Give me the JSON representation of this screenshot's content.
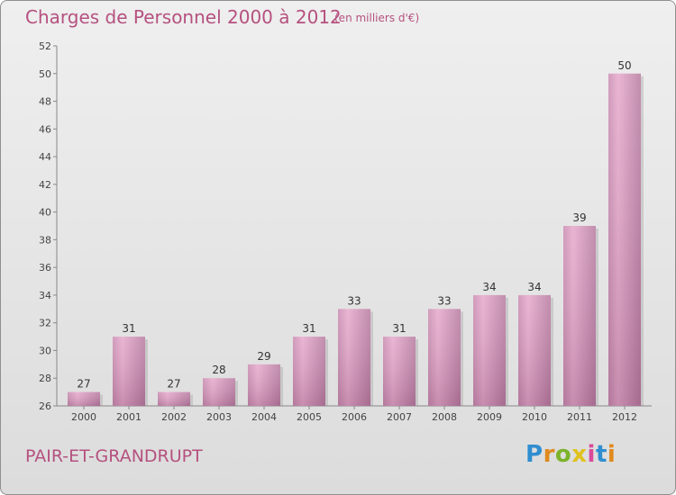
{
  "header": {
    "title": "Charges de Personnel 2000 à 2012",
    "subtitle": "(en milliers d'€)"
  },
  "footer": {
    "location": "PAIR-ET-GRANDRUPT",
    "logo_text": "Proxiti",
    "logo_letters": [
      {
        "ch": "P",
        "color": "#2f8ed0"
      },
      {
        "ch": "r",
        "color": "#e08a1e"
      },
      {
        "ch": "o",
        "color": "#7cb32b"
      },
      {
        "ch": "x",
        "color": "#e0c21e"
      },
      {
        "ch": "i",
        "color": "#d94b9b"
      },
      {
        "ch": "t",
        "color": "#2f8ed0"
      },
      {
        "ch": "i",
        "color": "#e08a1e"
      }
    ]
  },
  "colors": {
    "accent": "#b5517f",
    "bar_light": "#e8a6cc",
    "bar_dark": "#a86a91"
  },
  "chart_data": {
    "type": "bar",
    "categories": [
      "2000",
      "2001",
      "2002",
      "2003",
      "2004",
      "2005",
      "2006",
      "2007",
      "2008",
      "2009",
      "2010",
      "2011",
      "2012"
    ],
    "values": [
      27,
      31,
      27,
      28,
      29,
      31,
      33,
      31,
      33,
      34,
      34,
      39,
      50
    ],
    "ylim": [
      26,
      52
    ],
    "yticks": [
      26,
      28,
      30,
      32,
      34,
      36,
      38,
      40,
      42,
      44,
      46,
      48,
      50,
      52
    ],
    "grid": false,
    "data_labels": true
  }
}
